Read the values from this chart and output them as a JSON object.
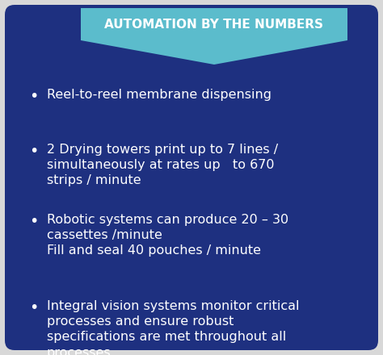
{
  "title": "AUTOMATION BY THE NUMBERS",
  "title_color": "#ffffff",
  "bg_color": "#1e3080",
  "outer_bg": "#d8d8d8",
  "text_color": "#ffffff",
  "bullet_items": [
    "Reel-to-reel membrane dispensing",
    "2 Drying towers print up to 7 lines /\nsimultaneously at rates up   to 670\nstrips / minute",
    "Robotic systems can produce 20 – 30\ncassettes /minute\nFill and seal 40 pouches / minute",
    "Integral vision systems monitor critical\nprocesses and ensure robust\nspecifications are met throughout all\nprocesses."
  ],
  "banner_color": "#5bbccc",
  "fig_width": 4.74,
  "fig_height": 4.4,
  "dpi": 100
}
